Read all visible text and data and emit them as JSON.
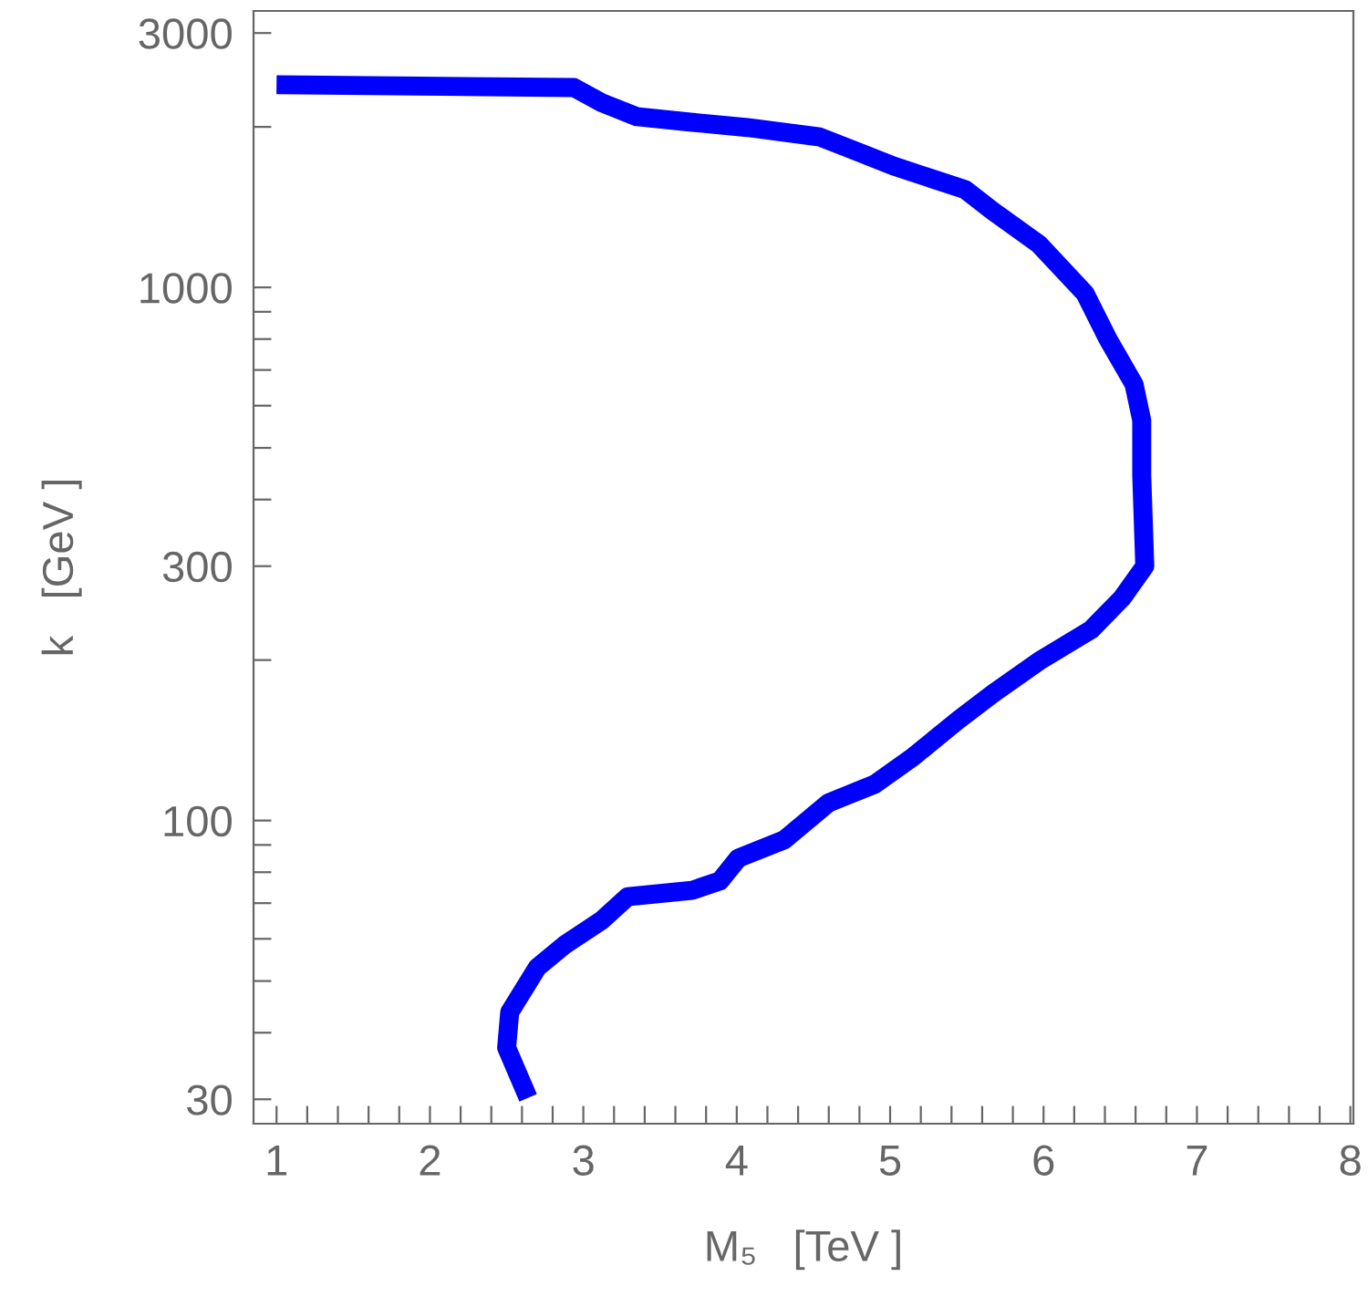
{
  "chart_data": {
    "type": "line",
    "xlabel": "M₅   [TeV ]",
    "ylabel": "k   [GeV ]",
    "log": "y",
    "grid": false,
    "legend": false,
    "marker": "none",
    "line_style": "solid",
    "xlim": [
      0.85,
      8.02
    ],
    "ylim": [
      27,
      3300
    ],
    "xticks": [
      1,
      {
        "value": 1.2,
        "label": null
      },
      {
        "value": 1.4,
        "label": null
      },
      {
        "value": 1.6,
        "label": null
      },
      {
        "value": 1.8,
        "label": null
      },
      2,
      {
        "value": 2.2,
        "label": null
      },
      {
        "value": 2.4,
        "label": null
      },
      {
        "value": 2.6,
        "label": null
      },
      {
        "value": 2.8,
        "label": null
      },
      3,
      {
        "value": 3.2,
        "label": null
      },
      {
        "value": 3.4,
        "label": null
      },
      {
        "value": 3.6,
        "label": null
      },
      {
        "value": 3.8,
        "label": null
      },
      4,
      {
        "value": 4.2,
        "label": null
      },
      {
        "value": 4.4,
        "label": null
      },
      {
        "value": 4.6,
        "label": null
      },
      {
        "value": 4.8,
        "label": null
      },
      5,
      {
        "value": 5.2,
        "label": null
      },
      {
        "value": 5.4,
        "label": null
      },
      {
        "value": 5.6,
        "label": null
      },
      {
        "value": 5.8,
        "label": null
      },
      6,
      {
        "value": 6.2,
        "label": null
      },
      {
        "value": 6.4,
        "label": null
      },
      {
        "value": 6.6,
        "label": null
      },
      {
        "value": 6.8,
        "label": null
      },
      7,
      {
        "value": 7.2,
        "label": null
      },
      {
        "value": 7.4,
        "label": null
      },
      {
        "value": 7.6,
        "label": null
      },
      {
        "value": 7.8,
        "label": null
      },
      8
    ],
    "yticks": [
      30,
      {
        "value": 40,
        "label": null
      },
      {
        "value": 50,
        "label": null
      },
      {
        "value": 60,
        "label": null
      },
      {
        "value": 70,
        "label": null
      },
      {
        "value": 80,
        "label": null
      },
      {
        "value": 90,
        "label": null
      },
      100,
      {
        "value": 200,
        "label": null
      },
      300,
      {
        "value": 400,
        "label": null
      },
      {
        "value": 500,
        "label": null
      },
      {
        "value": 600,
        "label": null
      },
      {
        "value": 700,
        "label": null
      },
      {
        "value": 800,
        "label": null
      },
      {
        "value": 900,
        "label": null
      },
      1000,
      {
        "value": 2000,
        "label": null
      },
      3000
    ],
    "series": [
      {
        "color": "#0000ff",
        "x": [
          1.0,
          2.94,
          3.12,
          3.35,
          3.71,
          4.07,
          4.54,
          4.78,
          5.02,
          5.49,
          5.67,
          5.97,
          6.27,
          6.42,
          6.59,
          6.64,
          6.64,
          6.66,
          6.51,
          6.31,
          5.97,
          5.67,
          5.44,
          5.14,
          4.9,
          4.6,
          4.31,
          4.01,
          3.89,
          3.71,
          3.29,
          3.12,
          2.88,
          2.7,
          2.52,
          2.5,
          2.64
        ],
        "values": [
          2400,
          2370,
          2220,
          2090,
          2040,
          1995,
          1915,
          1800,
          1690,
          1525,
          1390,
          1205,
          975,
          800,
          658,
          563,
          444,
          300,
          261,
          228,
          199,
          173,
          154,
          131,
          117,
          108,
          92,
          85,
          77,
          74,
          72,
          65,
          58.5,
          53,
          43.7,
          37.5,
          30.2
        ]
      }
    ]
  }
}
